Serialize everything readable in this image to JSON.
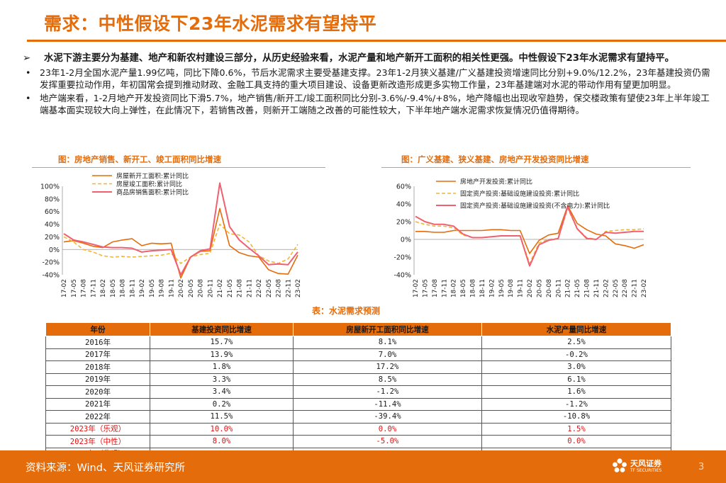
{
  "slide": {
    "title": "需求：中性假设下23年水泥需求有望持平",
    "page_number": "3"
  },
  "bullets": {
    "main_marker": "➢",
    "sub_marker": "•",
    "main": "水泥下游主要分为基建、地产和新农村建设三部分，从历史经验来看，水泥产量和地产新开工面积的相关性更强。中性假设下23年水泥需求有望持平。",
    "sub": [
      "23年1-2月全国水泥产量1.99亿吨，同比下降0.6%，节后水泥需求主要受基建支撑。23年1-2月狭义基建/广义基建投资增速同比分别+9.0%/12.2%，23年基建投资仍需发挥重要拉动作用，年初国常会提到推动财政、金融工具支持的重大项目建设、设备更新改造形成更多实物工作量，23年基建端对水泥的带动作用有望更加明显。",
      "地产端来看，1-2月地产开发投资同比下滑5.7%，地产销售/新开工/竣工面积同比分别-3.6%/-9.4%/+8%，地产降幅也出现收窄趋势，保交楼政策有望使23年上半年竣工端基本面实现较大向上弹性，在此情况下，若销售改善，则新开工端随之改善的可能性较大，下半年地产端水泥需求恢复情况仍值得期待。"
    ]
  },
  "chart_data": [
    {
      "type": "line",
      "title": "图：房地产销售、新开工、竣工面积同比增速",
      "x": [
        "17-02",
        "17-05",
        "17-08",
        "17-11",
        "18-02",
        "18-05",
        "18-08",
        "18-11",
        "19-02",
        "19-05",
        "19-08",
        "19-11",
        "20-02",
        "20-05",
        "20-08",
        "20-11",
        "21-02",
        "21-05",
        "21-08",
        "21-11",
        "22-02",
        "22-05",
        "22-08",
        "22-11",
        "23-02"
      ],
      "y_ticks": [
        "100%",
        "80%",
        "60%",
        "40%",
        "20%",
        "0%",
        "-20%",
        "-40%"
      ],
      "ylim": [
        -40,
        100
      ],
      "legend_placement": "top-left",
      "series": [
        {
          "name": "房屋新开工面积:累计同比",
          "color": "#e46c0a",
          "dash": "solid",
          "values": [
            12,
            14,
            10,
            5,
            3,
            12,
            15,
            17,
            6,
            10,
            9,
            10,
            -45,
            -12,
            -3,
            -2,
            65,
            6,
            -5,
            -10,
            -12,
            -32,
            -38,
            -39,
            -9
          ]
        },
        {
          "name": "房屋竣工面积:累计同比",
          "color": "#f2b632",
          "dash": "dashed",
          "values": [
            20,
            12,
            0,
            -4,
            -10,
            -12,
            -11,
            -12,
            -11,
            -10,
            -9,
            -6,
            -22,
            -12,
            -8,
            -6,
            40,
            25,
            23,
            12,
            -10,
            -18,
            -22,
            -15,
            8
          ]
        },
        {
          "name": "商品房销售面积:累计同比",
          "color": "#f06070",
          "dash": "solid",
          "values": [
            25,
            15,
            12,
            8,
            4,
            3,
            3,
            2,
            -4,
            -2,
            -1,
            0,
            -40,
            -12,
            -2,
            1,
            105,
            36,
            15,
            2,
            -10,
            -24,
            -23,
            -24,
            -4
          ]
        }
      ]
    },
    {
      "type": "line",
      "title": "图：广义基建、狭义基建、房地产开发投资同比增速",
      "x": [
        "17-02",
        "17-05",
        "17-08",
        "17-11",
        "18-02",
        "18-05",
        "18-08",
        "18-11",
        "19-02",
        "19-05",
        "19-08",
        "19-11",
        "20-02",
        "20-05",
        "20-08",
        "20-11",
        "21-02",
        "21-05",
        "21-08",
        "21-11",
        "22-02",
        "22-05",
        "22-08",
        "22-11",
        "23-02"
      ],
      "y_ticks": [
        "60%",
        "40%",
        "20%",
        "0%",
        "-20%",
        "-40%"
      ],
      "ylim": [
        -40,
        60
      ],
      "legend_placement": "top-left",
      "series": [
        {
          "name": "房地产开发投资:累计同比",
          "color": "#e46c0a",
          "dash": "solid",
          "values": [
            9,
            9,
            8,
            8,
            10,
            10,
            10,
            10,
            11,
            11,
            10,
            10,
            -16,
            -1,
            5,
            7,
            38,
            18,
            11,
            6,
            4,
            -5,
            -7,
            -10,
            -6
          ]
        },
        {
          "name": "固定资产投资:基础设施建设投资:累计同比",
          "color": "#f2b632",
          "dash": "dashed",
          "values": [
            20,
            17,
            15,
            15,
            13,
            5,
            2,
            2,
            3,
            4,
            4,
            4,
            -27,
            -4,
            0,
            1,
            35,
            12,
            2,
            0,
            9,
            10,
            11,
            11,
            12
          ]
        },
        {
          "name": "固定资产投资:基础设施建设投资(不含电力):累计同比",
          "color": "#f06070",
          "dash": "solid",
          "values": [
            26,
            20,
            17,
            17,
            15,
            6,
            2,
            2,
            3,
            4,
            4,
            4,
            -30,
            -6,
            -1,
            1,
            37,
            12,
            1,
            0,
            8,
            7,
            8,
            9,
            9
          ]
        }
      ]
    }
  ],
  "table": {
    "title": "表：水泥需求预测",
    "headers": [
      "年份",
      "基建投资同比增速",
      "房屋新开工面积同比增速",
      "水泥产量同比增速"
    ],
    "rows": [
      {
        "year": "2016年",
        "infra": "15.7%",
        "starts": "8.1%",
        "cement": "2.5%",
        "projection": false
      },
      {
        "year": "2017年",
        "infra": "13.9%",
        "starts": "7.0%",
        "cement": "-0.2%",
        "projection": false
      },
      {
        "year": "2018年",
        "infra": "1.8%",
        "starts": "17.2%",
        "cement": "3.0%",
        "projection": false
      },
      {
        "year": "2019年",
        "infra": "3.3%",
        "starts": "8.5%",
        "cement": "6.1%",
        "projection": false
      },
      {
        "year": "2020年",
        "infra": "3.4%",
        "starts": "-1.2%",
        "cement": "1.6%",
        "projection": false
      },
      {
        "year": "2021年",
        "infra": "0.2%",
        "starts": "-11.4%",
        "cement": "-1.2%",
        "projection": false
      },
      {
        "year": "2022年",
        "infra": "11.5%",
        "starts": "-39.4%",
        "cement": "-10.8%",
        "projection": false
      },
      {
        "year": "2023年（乐观）",
        "infra": "10.0%",
        "starts": "0.0%",
        "cement": "1.5%",
        "projection": true
      },
      {
        "year": "2023年（中性）",
        "infra": "8.0%",
        "starts": "-5.0%",
        "cement": "0.0%",
        "projection": true
      },
      {
        "year": "2023年（悲观）",
        "infra": "5.0%",
        "starts": "-20.0%",
        "cement": "-3.5%",
        "projection": true
      }
    ]
  },
  "footer": {
    "source": "资料来源：Wind、天风证券研究所",
    "brand_name": "天风证券",
    "brand_sub": "TF SECURITIES",
    "logo_icon": "flower-logo-icon",
    "colors": {
      "accent": "#e46c0a",
      "projection_text": "#e01010"
    }
  }
}
